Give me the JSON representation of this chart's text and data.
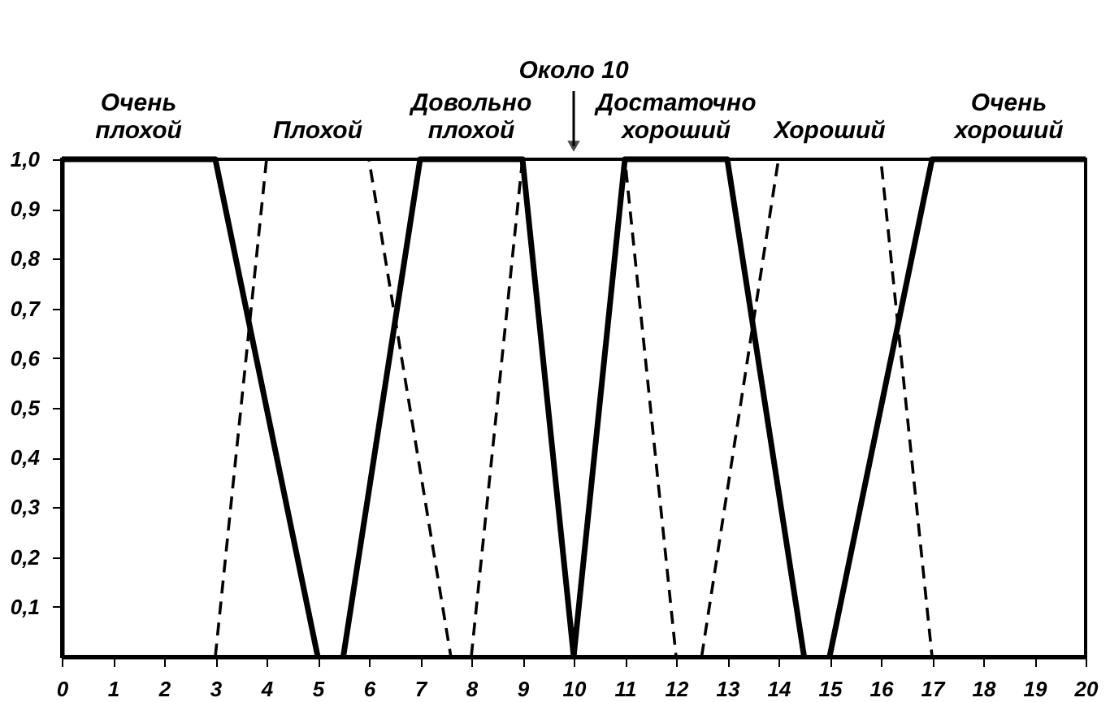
{
  "chart_data": {
    "type": "line",
    "xlim": [
      0,
      20
    ],
    "ylim": [
      0,
      1
    ],
    "xticks": [
      0,
      1,
      2,
      3,
      4,
      5,
      6,
      7,
      8,
      9,
      10,
      11,
      12,
      13,
      14,
      15,
      16,
      17,
      18,
      19,
      20
    ],
    "yticks": [
      {
        "value": 0.1,
        "label": "0,1"
      },
      {
        "value": 0.2,
        "label": "0,2"
      },
      {
        "value": 0.3,
        "label": "0,3"
      },
      {
        "value": 0.4,
        "label": "0,4"
      },
      {
        "value": 0.5,
        "label": "0,5"
      },
      {
        "value": 0.6,
        "label": "0,6"
      },
      {
        "value": 0.7,
        "label": "0,7"
      },
      {
        "value": 0.8,
        "label": "0,8"
      },
      {
        "value": 0.9,
        "label": "0,9"
      },
      {
        "value": 1.0,
        "label": "1,0"
      }
    ],
    "grid": false,
    "marker": "none",
    "series": [
      {
        "name": "Очень плохой",
        "color": "#000000",
        "line_style": "solid",
        "x": [
          0,
          3,
          5
        ],
        "values": [
          1,
          1,
          0
        ]
      },
      {
        "name": "Плохой",
        "color": "#000000",
        "line_style": "dashed",
        "x": [
          3,
          4,
          6,
          7.6
        ],
        "values": [
          0,
          1,
          1,
          0
        ]
      },
      {
        "name": "Довольно плохой",
        "color": "#000000",
        "line_style": "solid",
        "x": [
          5.5,
          7,
          9,
          10
        ],
        "values": [
          0,
          1,
          1,
          0
        ]
      },
      {
        "name": "Около 10",
        "color": "#000000",
        "line_style": "dashed",
        "x": [
          8,
          9,
          11,
          12
        ],
        "values": [
          0,
          1,
          1,
          0
        ]
      },
      {
        "name": "Достаточно хороший",
        "color": "#000000",
        "line_style": "solid",
        "x": [
          10,
          11,
          13,
          14.5
        ],
        "values": [
          0,
          1,
          1,
          0
        ]
      },
      {
        "name": "Хороший",
        "color": "#000000",
        "line_style": "dashed",
        "x": [
          12.5,
          14,
          16,
          17
        ],
        "values": [
          0,
          1,
          1,
          0
        ]
      },
      {
        "name": "Очень хороший",
        "color": "#000000",
        "line_style": "solid",
        "x": [
          15,
          17,
          20
        ],
        "values": [
          0,
          1,
          1
        ]
      }
    ]
  }
}
